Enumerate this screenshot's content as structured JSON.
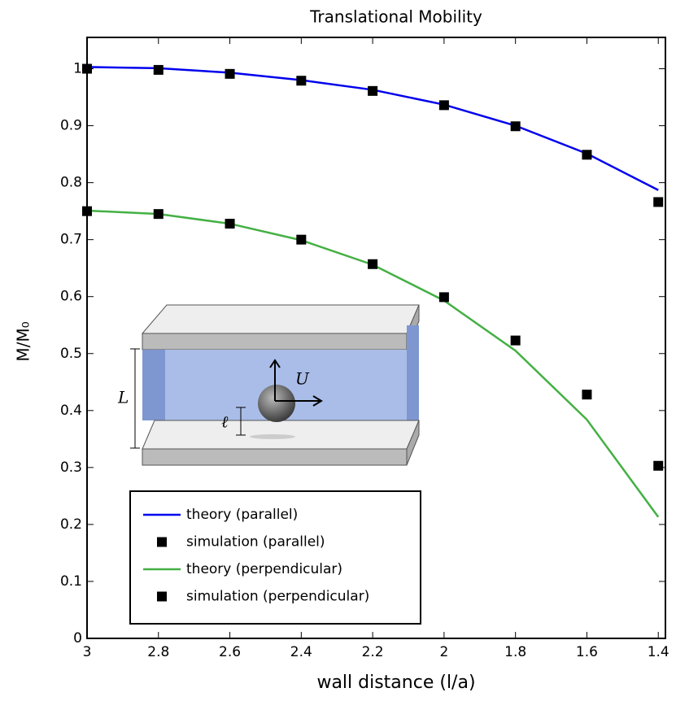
{
  "chart_data": {
    "type": "line",
    "title": "Translational Mobility",
    "xlabel": "wall distance (l/a)",
    "ylabel": "M/M₀",
    "x": [
      3,
      2.8,
      2.6,
      2.4,
      2.2,
      2,
      1.8,
      1.6,
      1.4
    ],
    "series": [
      {
        "name": "theory (parallel)",
        "style": "line",
        "color": "#0000ee",
        "values": [
          1.003,
          1.001,
          0.993,
          0.98,
          0.963,
          0.937,
          0.9,
          0.851,
          0.787
        ]
      },
      {
        "name": "simulation (parallel)",
        "style": "marker",
        "color": "#000000",
        "values": [
          1.0,
          0.998,
          0.991,
          0.979,
          0.961,
          0.936,
          0.899,
          0.849,
          0.766
        ]
      },
      {
        "name": "theory (perpendicular)",
        "style": "line",
        "color": "#44b044",
        "values": [
          0.751,
          0.745,
          0.728,
          0.699,
          0.656,
          0.593,
          0.505,
          0.384,
          0.213
        ]
      },
      {
        "name": "simulation (perpendicular)",
        "style": "marker",
        "color": "#000000",
        "values": [
          0.75,
          0.745,
          0.728,
          0.7,
          0.657,
          0.599,
          0.523,
          0.428,
          0.303
        ]
      }
    ],
    "xlim": [
      3,
      1.38
    ],
    "ylim": [
      0,
      1.055
    ],
    "xticks": [
      3,
      2.8,
      2.6,
      2.4,
      2.2,
      2,
      1.8,
      1.6,
      1.4
    ],
    "yticks": [
      0,
      0.1,
      0.2,
      0.3,
      0.4,
      0.5,
      0.6,
      0.7,
      0.8,
      0.9,
      1
    ],
    "annotations": [
      "L",
      "ℓ",
      "U"
    ]
  }
}
